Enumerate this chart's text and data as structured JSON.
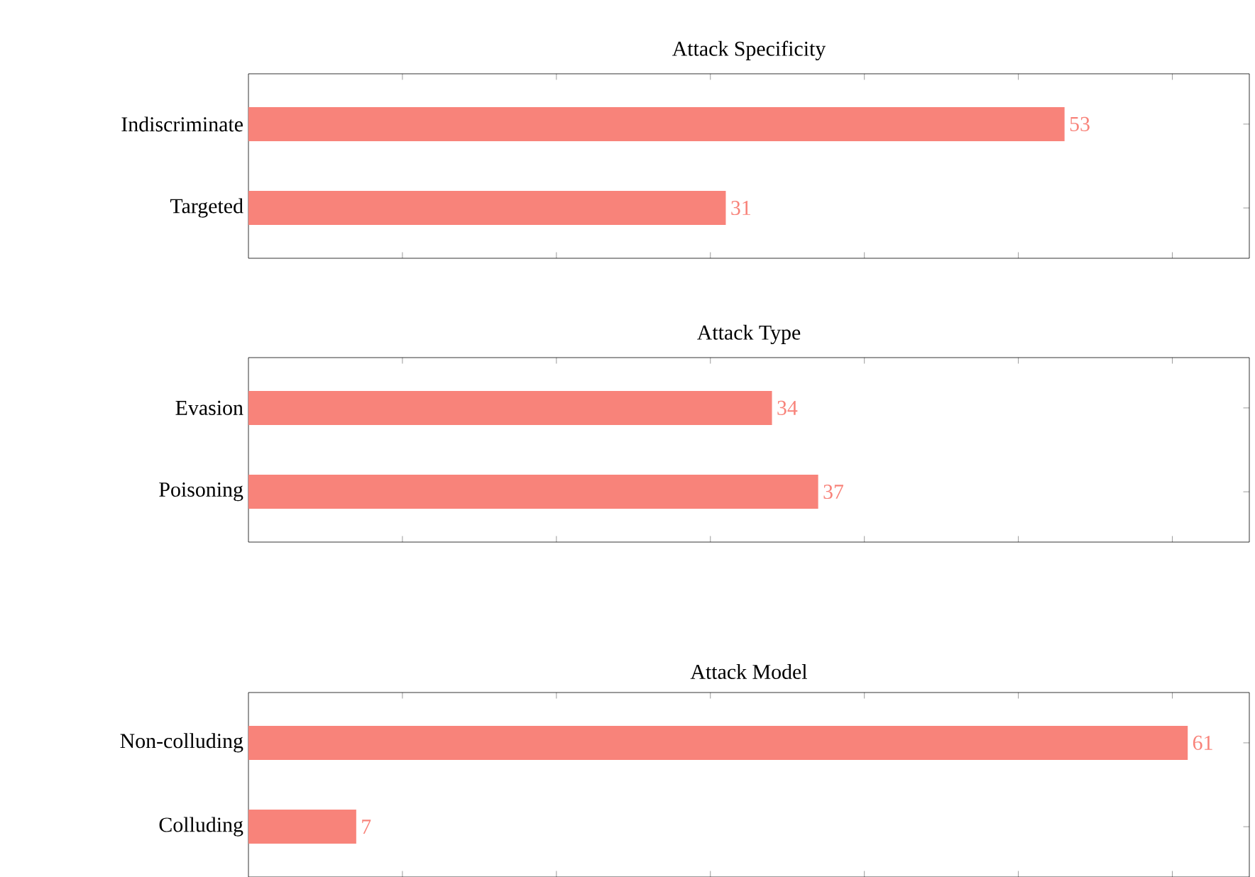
{
  "chart_data": [
    {
      "type": "bar",
      "orientation": "horizontal",
      "title": "Attack Specificity",
      "categories": [
        "Indiscriminate",
        "Targeted"
      ],
      "values": [
        53,
        31
      ],
      "color": "#f8837a",
      "data_labels": true,
      "xlim": [
        0,
        65
      ],
      "xticks": [
        {
          "value": 10,
          "label": null
        },
        {
          "value": 20,
          "label": null
        },
        {
          "value": 30,
          "label": null
        },
        {
          "value": 40,
          "label": null
        },
        {
          "value": 50,
          "label": null
        },
        {
          "value": 60,
          "label": null
        }
      ],
      "tick_labels": "y"
    },
    {
      "type": "bar",
      "orientation": "horizontal",
      "title": "Attack Type",
      "categories": [
        "Evasion",
        "Poisoning"
      ],
      "values": [
        34,
        37
      ],
      "color": "#f8837a",
      "data_labels": true,
      "xlim": [
        0,
        65
      ],
      "xticks": [
        {
          "value": 10,
          "label": null
        },
        {
          "value": 20,
          "label": null
        },
        {
          "value": 30,
          "label": null
        },
        {
          "value": 40,
          "label": null
        },
        {
          "value": 50,
          "label": null
        },
        {
          "value": 60,
          "label": null
        }
      ],
      "tick_labels": "y"
    },
    {
      "type": "bar",
      "orientation": "horizontal",
      "title": "Attack Model",
      "categories": [
        "Non-colluding",
        "Colluding"
      ],
      "values": [
        61,
        7
      ],
      "color": "#f8837a",
      "data_labels": true,
      "xlim": [
        0,
        65
      ],
      "xticks": [
        {
          "value": 10,
          "label": null
        },
        {
          "value": 20,
          "label": null
        },
        {
          "value": 30,
          "label": null
        },
        {
          "value": 40,
          "label": null
        },
        {
          "value": 50,
          "label": null
        },
        {
          "value": 60,
          "label": null
        }
      ],
      "tick_labels": "y"
    }
  ]
}
